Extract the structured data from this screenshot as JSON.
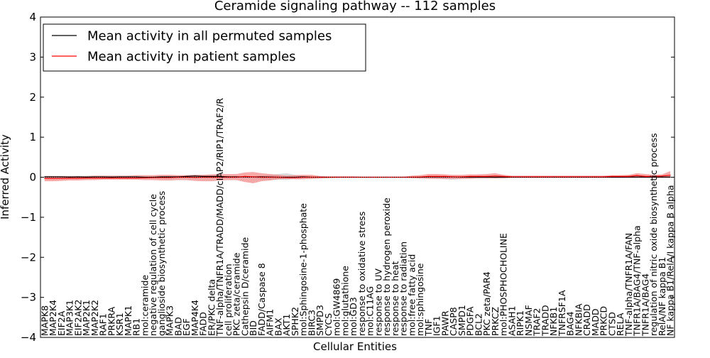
{
  "chart_data": {
    "type": "line",
    "title": "Ceramide signaling pathway -- 112 samples",
    "xlabel": "Cellular Entities",
    "ylabel": "Inferred Activity",
    "ylim": [
      -4,
      4
    ],
    "yticks": [
      -4,
      -3,
      -2,
      -1,
      0,
      1,
      2,
      3,
      4
    ],
    "ytick_labels": [
      "−4",
      "−3",
      "−2",
      "−1",
      "0",
      "1",
      "2",
      "3",
      "4"
    ],
    "grid": false,
    "legend": {
      "location": "top-left",
      "entries": [
        {
          "label": "Mean activity in all permuted samples",
          "color": "#000000"
        },
        {
          "label": "Mean activity in patient samples",
          "color": "#ff0000"
        }
      ]
    },
    "categories": [
      "MAPK8",
      "MAP2K4",
      "EIF2A",
      "MAP3K1",
      "EIF2AK2",
      "MAP2K1",
      "MAP2K2",
      "RAF1",
      "PRKRA",
      "KSR1",
      "MAPK1",
      "RB1",
      "mol:ceramide",
      "negative regulation of cell cycle",
      "ganglioside biosynthetic process",
      "MAPK3",
      "BAD",
      "EGF",
      "MAP4K4",
      "FADD",
      "ER/PKC delta",
      "TNF-alpha/TNFR1A/TRADD/MADD/cIAP2/RIP1/TRAF2/R",
      "cell proliferation",
      "PKC zeta/ceramide",
      "Cathepsin D/ceramide",
      "BID",
      "FADD/Caspase 8",
      "AIFM1",
      "BAX",
      "AKT1",
      "SPHK2",
      "mol:Sphingosine-1-phosphate",
      "BIRC3",
      "SMPD3",
      "CYCS",
      "mol:GW4869",
      "mol:glutathione",
      "mol:GD3",
      "response to oxidative stress",
      "mol:C11AG",
      "response to UV",
      "response to hydrogen peroxide",
      "response to heat",
      "response to radiation",
      "mol:free fatty acid",
      "mol:sphingosine",
      "TNF",
      "IGF1",
      "PAWR",
      "CASP8",
      "SMPD1",
      "PDGFA",
      "BCL2",
      "PKC zeta/PAR4",
      "PRKCZ",
      "mol:PHOSPHOCHOLINE",
      "ASAH1",
      "RIPK1",
      "NSMAF",
      "TRAF2",
      "TRADD",
      "NFKB1",
      "TNFRSF1A",
      "BAG4",
      "NFKBIA",
      "CRADD",
      "MADD",
      "PRKCD",
      "CTSD",
      "RELA",
      "TNF-alpha/TNFR1A/FAN",
      "TNFR1A/BAG4/TNF-alpha",
      "TNFR1A/BAG4",
      "regulation of nitric oxide biosynthetic process",
      "RelA/NF kappa B1",
      "NF kappa B1/RelA/I kappa B alpha"
    ],
    "series": [
      {
        "name": "Mean activity in all permuted samples",
        "color": "#000000",
        "values": [
          0.01,
          0.01,
          0.01,
          0.005,
          0.01,
          0.005,
          0.01,
          0.01,
          0.005,
          0.01,
          0.01,
          0.01,
          0.0,
          0.0,
          0.01,
          0.01,
          0.01,
          0.02,
          0.03,
          0.02,
          0.02,
          0.02,
          0.01,
          0.01,
          0.01,
          0.01,
          0.01,
          0.005,
          0.0,
          0.0,
          0.0,
          0.01,
          0.0,
          0.0,
          0.0,
          0.0,
          0.0,
          0.0,
          0.0,
          0.0,
          0.0,
          0.0,
          0.0,
          0.0,
          0.0,
          0.0,
          0.01,
          0.01,
          0.01,
          0.01,
          0.005,
          0.005,
          0.005,
          0.005,
          0.0,
          0.005,
          0.005,
          0.005,
          0.005,
          0.005,
          0.005,
          0.005,
          0.005,
          0.005,
          0.005,
          0.005,
          0.005,
          0.005,
          0.005,
          0.005,
          0.005,
          0.005,
          0.005,
          0.005,
          0.005,
          0.005
        ],
        "band_upper": [
          0.03,
          0.02,
          0.02,
          0.02,
          0.02,
          0.02,
          0.02,
          0.02,
          0.02,
          0.02,
          0.02,
          0.02,
          0.02,
          0.02,
          0.03,
          0.03,
          0.04,
          0.05,
          0.06,
          0.05,
          0.05,
          0.04,
          0.03,
          0.03,
          0.02,
          0.02,
          0.04,
          0.06,
          0.08,
          0.1,
          0.06,
          0.03,
          0.02,
          0.02,
          0.01,
          0.01,
          0.01,
          0.01,
          0.01,
          0.01,
          0.01,
          0.01,
          0.01,
          0.01,
          0.01,
          0.01,
          0.02,
          0.02,
          0.03,
          0.02,
          0.02,
          0.02,
          0.02,
          0.02,
          0.01,
          0.02,
          0.01,
          0.01,
          0.01,
          0.01,
          0.01,
          0.01,
          0.01,
          0.01,
          0.01,
          0.01,
          0.01,
          0.01,
          0.01,
          0.01,
          0.01,
          0.01,
          0.01,
          0.01,
          0.01,
          0.01
        ],
        "band_lower": [
          -0.02,
          -0.02,
          -0.02,
          -0.02,
          -0.02,
          -0.02,
          -0.02,
          -0.02,
          -0.02,
          -0.02,
          -0.02,
          -0.02,
          -0.02,
          -0.02,
          -0.02,
          -0.02,
          -0.02,
          -0.01,
          -0.01,
          -0.01,
          -0.02,
          -0.02,
          -0.02,
          -0.02,
          -0.02,
          -0.03,
          -0.05,
          -0.06,
          -0.06,
          -0.07,
          -0.04,
          -0.02,
          -0.01,
          -0.01,
          -0.01,
          -0.01,
          -0.01,
          -0.01,
          -0.01,
          -0.01,
          -0.01,
          -0.01,
          -0.01,
          -0.01,
          -0.01,
          -0.02,
          -0.02,
          -0.03,
          -0.05,
          -0.06,
          -0.04,
          -0.03,
          -0.02,
          -0.02,
          -0.02,
          -0.02,
          -0.01,
          -0.01,
          -0.01,
          -0.01,
          -0.01,
          -0.01,
          -0.01,
          -0.01,
          -0.01,
          -0.01,
          -0.01,
          -0.01,
          -0.01,
          -0.01,
          -0.01,
          -0.01,
          -0.01,
          -0.01,
          -0.01,
          -0.01
        ]
      },
      {
        "name": "Mean activity in patient samples",
        "color": "#ff0000",
        "values": [
          -0.03,
          -0.03,
          -0.03,
          -0.025,
          -0.025,
          -0.02,
          -0.02,
          -0.02,
          -0.02,
          -0.02,
          -0.02,
          -0.02,
          -0.015,
          -0.01,
          -0.01,
          -0.01,
          0.0,
          0.0,
          -0.005,
          0.0,
          0.0,
          0.0,
          0.0,
          0.0,
          0.02,
          0.01,
          0.0,
          0.0,
          0.0,
          -0.01,
          -0.01,
          0.0,
          0.0,
          0.0,
          0.0,
          0.0,
          0.0,
          0.0,
          0.0,
          0.0,
          0.0,
          0.0,
          0.0,
          0.0,
          0.0,
          0.005,
          0.02,
          0.02,
          0.02,
          0.01,
          0.01,
          0.02,
          0.02,
          0.02,
          0.03,
          0.02,
          0.01,
          0.01,
          0.01,
          0.01,
          0.01,
          0.01,
          0.01,
          0.01,
          0.01,
          0.01,
          0.01,
          0.01,
          0.02,
          0.02,
          0.02,
          0.04,
          0.02,
          0.02,
          0.03,
          0.05
        ],
        "band_upper": [
          0.03,
          0.03,
          0.03,
          0.03,
          0.03,
          0.03,
          0.04,
          0.04,
          0.04,
          0.04,
          0.04,
          0.05,
          0.05,
          0.05,
          0.06,
          0.06,
          0.05,
          0.05,
          0.06,
          0.06,
          0.07,
          0.08,
          0.08,
          0.08,
          0.12,
          0.13,
          0.1,
          0.08,
          0.06,
          0.04,
          0.05,
          0.06,
          0.06,
          0.03,
          0.02,
          0.02,
          0.02,
          0.02,
          0.01,
          0.01,
          0.01,
          0.01,
          0.01,
          0.01,
          0.04,
          0.05,
          0.08,
          0.08,
          0.07,
          0.06,
          0.06,
          0.07,
          0.07,
          0.08,
          0.1,
          0.06,
          0.04,
          0.04,
          0.04,
          0.04,
          0.04,
          0.04,
          0.04,
          0.04,
          0.04,
          0.04,
          0.04,
          0.04,
          0.05,
          0.05,
          0.06,
          0.1,
          0.08,
          0.06,
          0.07,
          0.15
        ],
        "band_lower": [
          -0.1,
          -0.1,
          -0.09,
          -0.08,
          -0.08,
          -0.07,
          -0.07,
          -0.06,
          -0.06,
          -0.06,
          -0.06,
          -0.06,
          -0.07,
          -0.07,
          -0.08,
          -0.08,
          -0.07,
          -0.07,
          -0.09,
          -0.1,
          -0.1,
          -0.08,
          -0.07,
          -0.07,
          -0.12,
          -0.15,
          -0.1,
          -0.08,
          -0.05,
          -0.04,
          -0.05,
          -0.05,
          -0.04,
          -0.03,
          -0.02,
          -0.01,
          -0.01,
          -0.01,
          -0.01,
          -0.01,
          -0.01,
          -0.01,
          -0.01,
          -0.01,
          -0.02,
          -0.03,
          -0.04,
          -0.04,
          -0.04,
          -0.04,
          -0.04,
          -0.04,
          -0.03,
          -0.03,
          -0.03,
          -0.03,
          -0.02,
          -0.02,
          -0.02,
          -0.02,
          -0.02,
          -0.02,
          -0.02,
          -0.02,
          -0.02,
          -0.02,
          -0.02,
          -0.02,
          -0.02,
          -0.02,
          -0.02,
          -0.02,
          -0.02,
          -0.02,
          -0.02,
          -0.02
        ]
      }
    ]
  },
  "colors": {
    "permuted_band": "#b9b9b9",
    "patient_band": "#f27a7a"
  }
}
